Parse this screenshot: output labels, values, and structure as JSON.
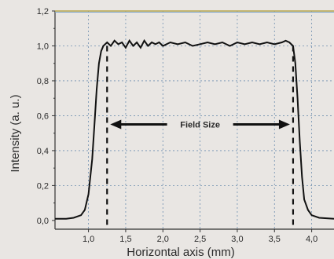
{
  "chart_data": {
    "type": "line",
    "title": "",
    "xlabel": "Horizontal axis (mm)",
    "ylabel": "Intensity (a. u.)",
    "xlim": [
      0.55,
      4.3
    ],
    "ylim": [
      -0.05,
      1.2
    ],
    "grid": true,
    "x_ticks": [
      1.0,
      1.5,
      2.0,
      2.5,
      3.0,
      3.5,
      4.0
    ],
    "x_tick_labels": [
      "1,0",
      "1,5",
      "2,0",
      "2,5",
      "3,0",
      "3,5",
      "4,0"
    ],
    "y_ticks": [
      0.0,
      0.2,
      0.4,
      0.6,
      0.8,
      1.0,
      1.2
    ],
    "y_tick_labels": [
      "0,0",
      "0,2",
      "0,4",
      "0,6",
      "0,8",
      "1,0",
      "1,2"
    ],
    "series": [
      {
        "values": [
          [
            0.55,
            0.01
          ],
          [
            0.7,
            0.01
          ],
          [
            0.8,
            0.015
          ],
          [
            0.9,
            0.03
          ],
          [
            0.95,
            0.06
          ],
          [
            1.0,
            0.15
          ],
          [
            1.05,
            0.35
          ],
          [
            1.08,
            0.55
          ],
          [
            1.11,
            0.75
          ],
          [
            1.14,
            0.9
          ],
          [
            1.17,
            0.97
          ],
          [
            1.2,
            1.0
          ],
          [
            1.25,
            1.02
          ],
          [
            1.3,
            1.0
          ],
          [
            1.35,
            1.03
          ],
          [
            1.4,
            1.01
          ],
          [
            1.45,
            1.02
          ],
          [
            1.5,
            0.99
          ],
          [
            1.55,
            1.03
          ],
          [
            1.6,
            1.0
          ],
          [
            1.65,
            1.02
          ],
          [
            1.7,
            0.99
          ],
          [
            1.75,
            1.03
          ],
          [
            1.8,
            1.0
          ],
          [
            1.85,
            1.02
          ],
          [
            1.9,
            1.01
          ],
          [
            1.95,
            1.02
          ],
          [
            2.0,
            1.0
          ],
          [
            2.1,
            1.02
          ],
          [
            2.2,
            1.01
          ],
          [
            2.3,
            1.02
          ],
          [
            2.4,
            1.0
          ],
          [
            2.5,
            1.01
          ],
          [
            2.6,
            1.02
          ],
          [
            2.7,
            1.01
          ],
          [
            2.8,
            1.02
          ],
          [
            2.9,
            1.0
          ],
          [
            3.0,
            1.02
          ],
          [
            3.1,
            1.01
          ],
          [
            3.2,
            1.02
          ],
          [
            3.3,
            1.01
          ],
          [
            3.4,
            1.02
          ],
          [
            3.5,
            1.01
          ],
          [
            3.6,
            1.02
          ],
          [
            3.65,
            1.03
          ],
          [
            3.7,
            1.02
          ],
          [
            3.75,
            1.0
          ],
          [
            3.78,
            0.9
          ],
          [
            3.81,
            0.7
          ],
          [
            3.84,
            0.45
          ],
          [
            3.87,
            0.25
          ],
          [
            3.9,
            0.12
          ],
          [
            3.95,
            0.06
          ],
          [
            4.0,
            0.03
          ],
          [
            4.1,
            0.015
          ],
          [
            4.3,
            0.01
          ]
        ]
      }
    ],
    "markers": [
      1.25,
      3.75
    ],
    "annotation": {
      "text": "Field Size",
      "y": 0.55,
      "x_start": 1.25,
      "x_end": 3.75
    }
  }
}
